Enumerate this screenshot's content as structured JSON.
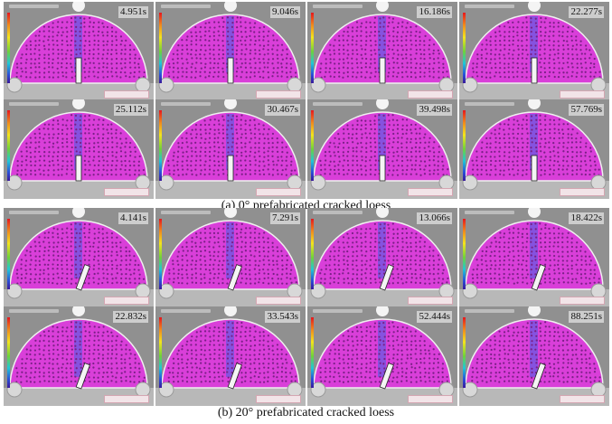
{
  "groups": [
    {
      "caption": "(a) 0° prefabricated cracked loess",
      "crack_angle_deg": 0,
      "tiles": [
        {
          "time": "4.951s"
        },
        {
          "time": "9.046s"
        },
        {
          "time": "16.186s"
        },
        {
          "time": "22.277s"
        },
        {
          "time": "25.112s"
        },
        {
          "time": "30.467s"
        },
        {
          "time": "39.498s"
        },
        {
          "time": "57.769s"
        }
      ]
    },
    {
      "caption": "(b) 20° prefabricated cracked loess",
      "crack_angle_deg": 20,
      "tiles": [
        {
          "time": "4.141s"
        },
        {
          "time": "7.291s"
        },
        {
          "time": "13.066s"
        },
        {
          "time": "18.422s"
        },
        {
          "time": "22.832s"
        },
        {
          "time": "33.543s"
        },
        {
          "time": "52.444s"
        },
        {
          "time": "88.251s"
        }
      ]
    }
  ],
  "colors": {
    "specimen": "#d93fd9",
    "dot": "#7a1f86",
    "strain_band": "#6a5ae0",
    "background": "#8a8a8a"
  }
}
